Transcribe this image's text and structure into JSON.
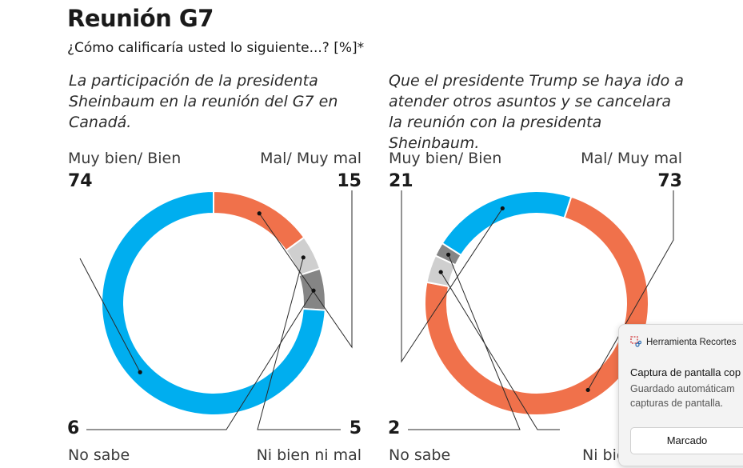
{
  "header": {
    "title": "Reunión G7",
    "subtitle": "¿Cómo calificaría usted lo siguiente...? [%]*"
  },
  "chart_data": [
    {
      "type": "pie",
      "title": "La participación de la presidenta Sheinbaum en la reunión del G7 en Canadá.",
      "categories": [
        "Muy bien/ Bien",
        "Mal/ Muy mal",
        "Ni bien ni mal",
        "No sabe"
      ],
      "values": [
        74,
        15,
        5,
        6
      ],
      "colors": [
        "#00aeef",
        "#f0714b",
        "#cfcfcf",
        "#858585"
      ]
    },
    {
      "type": "pie",
      "title": "Que el presidente Trump se haya ido a atender otros asuntos y se cancelara la reunión con la presidenta Sheinbaum.",
      "categories": [
        "Muy bien/ Bien",
        "Mal/ Muy mal",
        "Ni bien ni mal",
        "No sabe"
      ],
      "values": [
        21,
        73,
        4,
        2
      ],
      "colors": [
        "#00aeef",
        "#f0714b",
        "#cfcfcf",
        "#858585"
      ]
    }
  ],
  "chart1": {
    "top_left_label": "Muy bien/ Bien",
    "top_left_value": "74",
    "top_right_label": "Mal/ Muy mal",
    "top_right_value": "15",
    "bottom_left_label": "No sabe",
    "bottom_left_value": "6",
    "bottom_right_label": "Ni bien ni mal",
    "bottom_right_value": "5"
  },
  "chart2": {
    "top_left_label": "Muy bien/ Bien",
    "top_left_value": "21",
    "top_right_label": "Mal/ Muy mal",
    "top_right_value": "73",
    "bottom_left_label": "No sabe",
    "bottom_left_value": "2",
    "bottom_right_label": "Ni bie"
  },
  "notification": {
    "app_name": "Herramienta Recortes",
    "title": "Captura de pantalla cop",
    "body_line1": "Guardado automáticam",
    "body_line2": "capturas de pantalla.",
    "button_label": "Marcado"
  }
}
